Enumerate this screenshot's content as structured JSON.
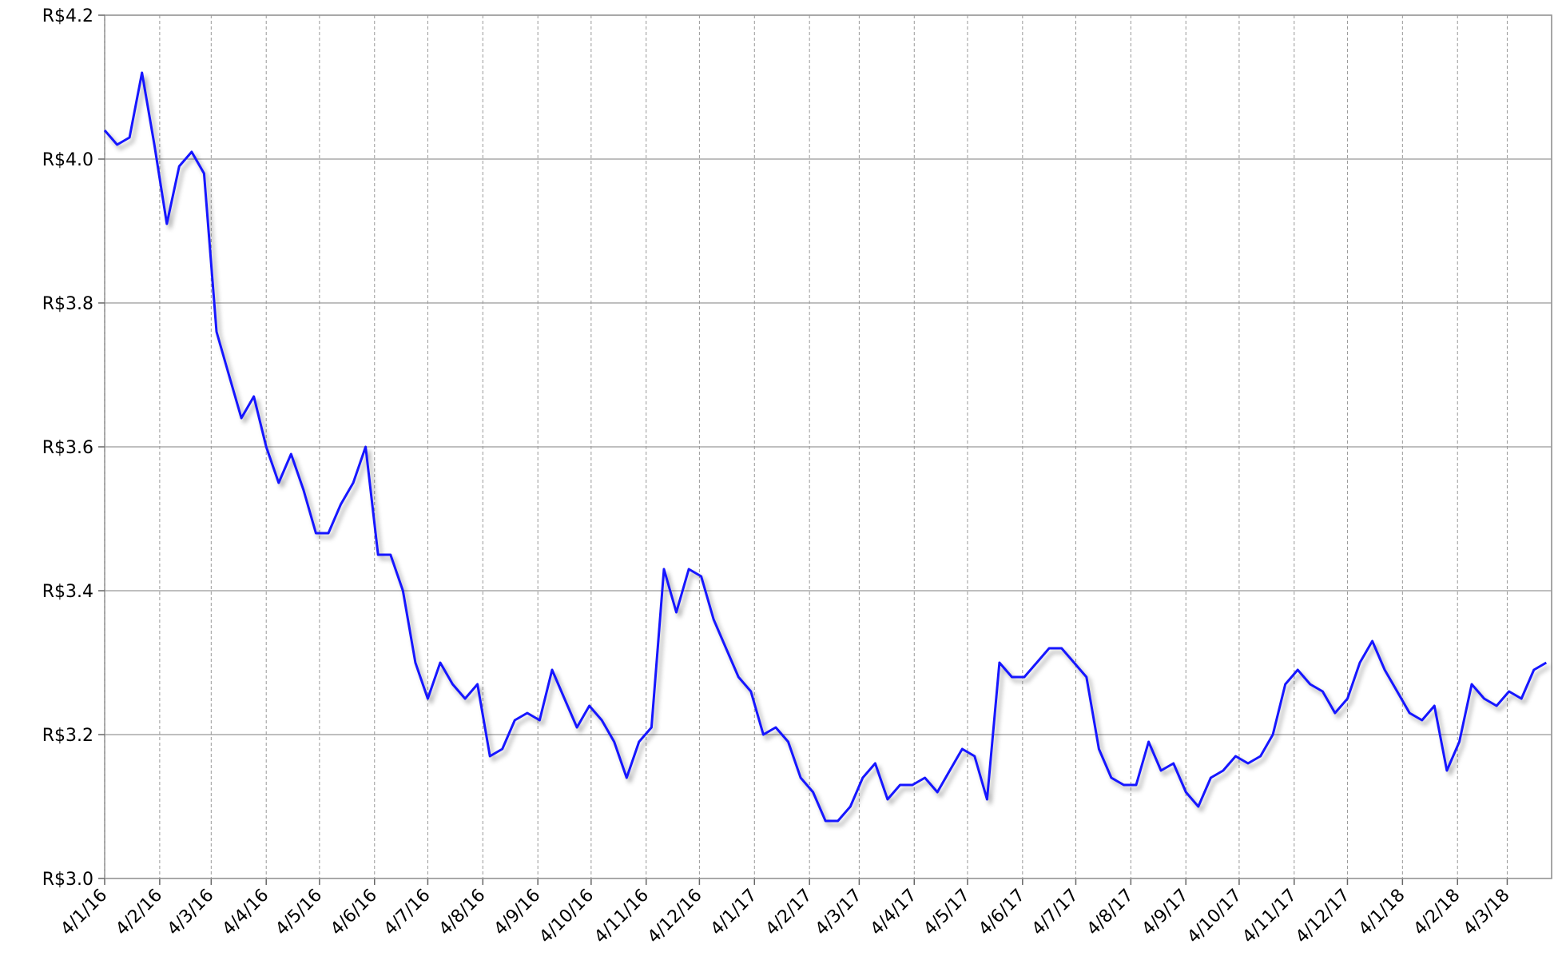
{
  "chart_data": {
    "type": "line",
    "color": "#1414ff",
    "grid": true,
    "x": [
      "2016-01-04",
      "2016-01-11",
      "2016-01-18",
      "2016-01-25",
      "2016-02-01",
      "2016-02-08",
      "2016-02-15",
      "2016-02-22",
      "2016-02-29",
      "2016-03-07",
      "2016-03-14",
      "2016-03-21",
      "2016-03-28",
      "2016-04-04",
      "2016-04-11",
      "2016-04-18",
      "2016-04-25",
      "2016-05-02",
      "2016-05-09",
      "2016-05-16",
      "2016-05-23",
      "2016-05-30",
      "2016-06-06",
      "2016-06-13",
      "2016-06-20",
      "2016-06-27",
      "2016-07-04",
      "2016-07-11",
      "2016-07-18",
      "2016-07-25",
      "2016-08-01",
      "2016-08-08",
      "2016-08-15",
      "2016-08-22",
      "2016-08-29",
      "2016-09-05",
      "2016-09-12",
      "2016-09-19",
      "2016-09-26",
      "2016-10-03",
      "2016-10-10",
      "2016-10-17",
      "2016-10-24",
      "2016-10-31",
      "2016-11-07",
      "2016-11-14",
      "2016-11-21",
      "2016-11-28",
      "2016-12-05",
      "2016-12-12",
      "2016-12-19",
      "2016-12-26",
      "2017-01-02",
      "2017-01-09",
      "2017-01-16",
      "2017-01-23",
      "2017-01-30",
      "2017-02-06",
      "2017-02-13",
      "2017-02-20",
      "2017-02-27",
      "2017-03-06",
      "2017-03-13",
      "2017-03-20",
      "2017-03-27",
      "2017-04-03",
      "2017-04-10",
      "2017-04-17",
      "2017-04-24",
      "2017-05-01",
      "2017-05-08",
      "2017-05-15",
      "2017-05-22",
      "2017-05-29",
      "2017-06-05",
      "2017-06-12",
      "2017-06-19",
      "2017-06-26",
      "2017-07-03",
      "2017-07-10",
      "2017-07-17",
      "2017-07-24",
      "2017-07-31",
      "2017-08-07",
      "2017-08-14",
      "2017-08-21",
      "2017-08-28",
      "2017-09-04",
      "2017-09-11",
      "2017-09-18",
      "2017-09-25",
      "2017-10-02",
      "2017-10-09",
      "2017-10-16",
      "2017-10-23",
      "2017-10-30",
      "2017-11-06",
      "2017-11-13",
      "2017-11-20",
      "2017-11-27",
      "2017-12-04",
      "2017-12-11",
      "2017-12-18",
      "2017-12-25",
      "2018-01-01",
      "2018-01-08",
      "2018-01-15",
      "2018-01-22",
      "2018-01-29",
      "2018-02-05",
      "2018-02-12",
      "2018-02-19",
      "2018-02-26",
      "2018-03-05",
      "2018-03-12",
      "2018-03-19",
      "2018-03-26"
    ],
    "values": [
      4.04,
      4.02,
      4.03,
      4.12,
      4.02,
      3.91,
      3.99,
      4.01,
      3.98,
      3.76,
      3.7,
      3.64,
      3.67,
      3.6,
      3.55,
      3.59,
      3.54,
      3.48,
      3.48,
      3.52,
      3.55,
      3.6,
      3.45,
      3.45,
      3.4,
      3.3,
      3.25,
      3.3,
      3.27,
      3.25,
      3.27,
      3.17,
      3.18,
      3.22,
      3.23,
      3.22,
      3.29,
      3.25,
      3.21,
      3.24,
      3.22,
      3.19,
      3.14,
      3.19,
      3.21,
      3.43,
      3.37,
      3.43,
      3.42,
      3.36,
      3.32,
      3.28,
      3.26,
      3.2,
      3.21,
      3.19,
      3.14,
      3.12,
      3.08,
      3.08,
      3.1,
      3.14,
      3.16,
      3.11,
      3.13,
      3.13,
      3.14,
      3.12,
      3.15,
      3.18,
      3.17,
      3.11,
      3.3,
      3.28,
      3.28,
      3.3,
      3.32,
      3.32,
      3.3,
      3.28,
      3.18,
      3.14,
      3.13,
      3.13,
      3.19,
      3.15,
      3.16,
      3.12,
      3.1,
      3.14,
      3.15,
      3.17,
      3.16,
      3.17,
      3.2,
      3.27,
      3.29,
      3.27,
      3.26,
      3.23,
      3.25,
      3.3,
      3.33,
      3.29,
      3.26,
      3.23,
      3.22,
      3.24,
      3.15,
      3.19,
      3.27,
      3.25,
      3.24,
      3.26,
      3.25,
      3.29,
      3.3
    ],
    "xlim": [
      "2016-01-04",
      "2018-03-29"
    ],
    "xticks": [
      {
        "value": "2016-01-04",
        "label": "4/1/16"
      },
      {
        "value": "2016-02-04",
        "label": "4/2/16"
      },
      {
        "value": "2016-03-04",
        "label": "4/3/16"
      },
      {
        "value": "2016-04-04",
        "label": "4/4/16"
      },
      {
        "value": "2016-05-04",
        "label": "4/5/16"
      },
      {
        "value": "2016-06-04",
        "label": "4/6/16"
      },
      {
        "value": "2016-07-04",
        "label": "4/7/16"
      },
      {
        "value": "2016-08-04",
        "label": "4/8/16"
      },
      {
        "value": "2016-09-04",
        "label": "4/9/16"
      },
      {
        "value": "2016-10-04",
        "label": "4/10/16"
      },
      {
        "value": "2016-11-04",
        "label": "4/11/16"
      },
      {
        "value": "2016-12-04",
        "label": "4/12/16"
      },
      {
        "value": "2017-01-04",
        "label": "4/1/17"
      },
      {
        "value": "2017-02-04",
        "label": "4/2/17"
      },
      {
        "value": "2017-03-04",
        "label": "4/3/17"
      },
      {
        "value": "2017-04-04",
        "label": "4/4/17"
      },
      {
        "value": "2017-05-04",
        "label": "4/5/17"
      },
      {
        "value": "2017-06-04",
        "label": "4/6/17"
      },
      {
        "value": "2017-07-04",
        "label": "4/7/17"
      },
      {
        "value": "2017-08-04",
        "label": "4/8/17"
      },
      {
        "value": "2017-09-04",
        "label": "4/9/17"
      },
      {
        "value": "2017-10-04",
        "label": "4/10/17"
      },
      {
        "value": "2017-11-04",
        "label": "4/11/17"
      },
      {
        "value": "2017-12-04",
        "label": "4/12/17"
      },
      {
        "value": "2018-01-04",
        "label": "4/1/18"
      },
      {
        "value": "2018-02-04",
        "label": "4/2/18"
      },
      {
        "value": "2018-03-04",
        "label": "4/3/18"
      }
    ],
    "ylim": [
      3.0,
      4.2
    ],
    "yticks": [
      {
        "value": 3.0,
        "label": "R$3.0"
      },
      {
        "value": 3.2,
        "label": "R$3.2"
      },
      {
        "value": 3.4,
        "label": "R$3.4"
      },
      {
        "value": 3.6,
        "label": "R$3.6"
      },
      {
        "value": 3.8,
        "label": "R$3.8"
      },
      {
        "value": 4.0,
        "label": "R$4.0"
      },
      {
        "value": 4.2,
        "label": "R$4.2"
      }
    ]
  }
}
